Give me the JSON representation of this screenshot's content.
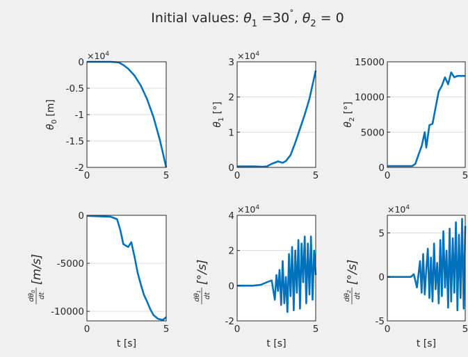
{
  "figure": {
    "title": "Initial values: θ₁ =30˚, θ₂ = 0",
    "title_parts": {
      "lead": "Initial values: ",
      "theta": "θ",
      "sub1": "1",
      "mid": " =30",
      "deg": "˚",
      "comma": ", ",
      "sub2": "2",
      "tail": " = 0"
    }
  },
  "chart_data": [
    {
      "type": "line",
      "xlabel": "",
      "ylabel": "θ0 [m]",
      "ylabel_parts": {
        "sym": "θ",
        "sub": "0",
        "unit": " [m]"
      },
      "exponent_label": "×10^4",
      "xlim": [
        0,
        5
      ],
      "ylim": [
        -20000,
        0
      ],
      "xticks": [
        "0",
        "5"
      ],
      "yticks": [
        {
          "value": 0,
          "label": "0"
        },
        {
          "value": -5000,
          "label": "-0.5"
        },
        {
          "value": -10000,
          "label": "-1"
        },
        {
          "value": -15000,
          "label": "-1.5"
        },
        {
          "value": -20000,
          "label": "-2"
        }
      ],
      "grid": "y",
      "series": [
        {
          "color": "#0072bd",
          "x": [
            0,
            1.5,
            2.0,
            2.3,
            2.6,
            3.0,
            3.4,
            3.8,
            4.2,
            4.6,
            5.0
          ],
          "y": [
            0,
            0,
            -100,
            -600,
            -1300,
            -2600,
            -4500,
            -7100,
            -10500,
            -14800,
            -20000
          ]
        }
      ]
    },
    {
      "type": "line",
      "xlabel": "",
      "ylabel": "θ1 [°]",
      "ylabel_parts": {
        "sym": "θ",
        "sub": "1",
        "unit": " [°]"
      },
      "exponent_label": "×10^4",
      "xlim": [
        0,
        5
      ],
      "ylim": [
        0,
        30000
      ],
      "xticks": [
        "0",
        "5"
      ],
      "yticks": [
        {
          "value": 0,
          "label": "0"
        },
        {
          "value": 10000,
          "label": "1"
        },
        {
          "value": 20000,
          "label": "2"
        },
        {
          "value": 30000,
          "label": "3"
        }
      ],
      "grid": "y",
      "series": [
        {
          "color": "#0072bd",
          "x": [
            0,
            1.0,
            1.6,
            1.9,
            2.2,
            2.6,
            2.9,
            3.1,
            3.4,
            3.7,
            4.0,
            4.3,
            4.6,
            4.8,
            5.0
          ],
          "y": [
            300,
            300,
            200,
            300,
            1000,
            1700,
            1300,
            1800,
            3500,
            7000,
            11000,
            15000,
            19500,
            23500,
            27500
          ]
        }
      ]
    },
    {
      "type": "line",
      "xlabel": "",
      "ylabel": "θ2 [°]",
      "ylabel_parts": {
        "sym": "θ",
        "sub": "2",
        "unit": " [°]"
      },
      "exponent_label": "",
      "xlim": [
        0,
        5
      ],
      "ylim": [
        0,
        15000
      ],
      "xticks": [
        "0",
        "5"
      ],
      "yticks": [
        {
          "value": 0,
          "label": "0"
        },
        {
          "value": 5000,
          "label": "5000"
        },
        {
          "value": 10000,
          "label": "10000"
        },
        {
          "value": 15000,
          "label": "15000"
        }
      ],
      "grid": "y",
      "series": [
        {
          "color": "#0072bd",
          "x": [
            0,
            1.6,
            1.8,
            2.0,
            2.2,
            2.4,
            2.5,
            2.7,
            2.9,
            3.1,
            3.3,
            3.5,
            3.7,
            3.9,
            4.1,
            4.3,
            4.5,
            5.0
          ],
          "y": [
            200,
            200,
            500,
            1800,
            3000,
            5000,
            2800,
            6000,
            6200,
            8500,
            10800,
            11600,
            12800,
            11800,
            13500,
            12800,
            13000,
            13000
          ]
        }
      ]
    },
    {
      "type": "line",
      "xlabel": "t [s]",
      "ylabel": "dθ0/dt [m/s]",
      "ylabel_parts": {
        "num": "dθ",
        "num_sub": "0",
        "den": "dt",
        "unit": "[m/s]"
      },
      "exponent_label": "",
      "xlim": [
        0,
        5
      ],
      "ylim": [
        -11000,
        0
      ],
      "xticks": [
        "0",
        "5"
      ],
      "yticks": [
        {
          "value": 0,
          "label": "0"
        },
        {
          "value": -5000,
          "label": "-5000"
        },
        {
          "value": -10000,
          "label": "-10000"
        }
      ],
      "grid": "y",
      "series": [
        {
          "color": "#0072bd",
          "x": [
            0,
            1.5,
            1.9,
            2.1,
            2.3,
            2.6,
            2.8,
            3.0,
            3.2,
            3.4,
            3.6,
            3.8,
            4.0,
            4.2,
            4.5,
            4.8,
            5.0
          ],
          "y": [
            -50,
            -150,
            -400,
            -1500,
            -3000,
            -3300,
            -2800,
            -4300,
            -6000,
            -7200,
            -8300,
            -9000,
            -9800,
            -10400,
            -10800,
            -10900,
            -10600
          ]
        }
      ]
    },
    {
      "type": "line",
      "xlabel": "t [s]",
      "ylabel": "dθ1/dt [°/s]",
      "ylabel_parts": {
        "num": "dθ",
        "num_sub": "1",
        "den": "dt",
        "unit": "[°/s]"
      },
      "exponent_label": "×10^4",
      "xlim": [
        0,
        5
      ],
      "ylim": [
        -20000,
        40000
      ],
      "xticks": [
        "0",
        "5"
      ],
      "yticks": [
        {
          "value": -20000,
          "label": "-2"
        },
        {
          "value": 0,
          "label": "0"
        },
        {
          "value": 20000,
          "label": "2"
        },
        {
          "value": 40000,
          "label": "4"
        }
      ],
      "grid": "y",
      "series": [
        {
          "color": "#0072bd",
          "x": [
            0,
            0.5,
            1.0,
            1.5,
            1.9,
            2.2,
            2.4,
            2.5,
            2.6,
            2.7,
            2.8,
            2.9,
            3.0,
            3.1,
            3.2,
            3.3,
            3.4,
            3.5,
            3.6,
            3.7,
            3.8,
            3.9,
            4.0,
            4.1,
            4.2,
            4.3,
            4.4,
            4.5,
            4.6,
            4.7,
            4.8,
            4.9,
            5.0
          ],
          "y": [
            0,
            0,
            0,
            500,
            2000,
            3000,
            -8000,
            6000,
            -3000,
            9000,
            -11000,
            14000,
            -10000,
            5000,
            -15000,
            18000,
            -6000,
            22000,
            -14000,
            20000,
            -4000,
            26000,
            -13000,
            24000,
            2000,
            28000,
            -10000,
            24000,
            -5000,
            28000,
            -8000,
            20000,
            6000
          ]
        }
      ]
    },
    {
      "type": "line",
      "xlabel": "t [s]",
      "ylabel": "dθ2/dt [°/s]",
      "ylabel_parts": {
        "num": "dθ",
        "num_sub": "2",
        "den": "dt",
        "unit": "[°/s]"
      },
      "exponent_label": "×10^4",
      "xlim": [
        0,
        5
      ],
      "ylim": [
        -50000,
        70000
      ],
      "xticks": [
        "0",
        "5"
      ],
      "yticks": [
        {
          "value": -50000,
          "label": "-5"
        },
        {
          "value": 0,
          "label": "0"
        },
        {
          "value": 50000,
          "label": "5"
        }
      ],
      "grid": "y",
      "series": [
        {
          "color": "#0072bd",
          "x": [
            0,
            0.5,
            1.0,
            1.5,
            1.7,
            1.9,
            2.1,
            2.2,
            2.3,
            2.4,
            2.5,
            2.6,
            2.7,
            2.8,
            2.9,
            3.0,
            3.1,
            3.2,
            3.3,
            3.4,
            3.5,
            3.6,
            3.7,
            3.8,
            3.9,
            4.0,
            4.1,
            4.2,
            4.3,
            4.4,
            4.5,
            4.6,
            4.7,
            4.8,
            4.9,
            5.0
          ],
          "y": [
            0,
            0,
            0,
            0,
            3000,
            -12000,
            18000,
            -18000,
            26000,
            -20000,
            8000,
            32000,
            -24000,
            22000,
            -28000,
            38000,
            -14000,
            16000,
            -30000,
            42000,
            -22000,
            52000,
            -12000,
            30000,
            -35000,
            55000,
            -28000,
            44000,
            -18000,
            62000,
            -38000,
            48000,
            -24000,
            66000,
            -36000,
            58000
          ]
        }
      ]
    }
  ]
}
